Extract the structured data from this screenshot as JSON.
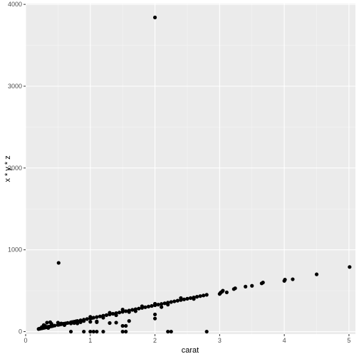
{
  "chart_data": {
    "type": "scatter",
    "xlabel": "carat",
    "ylabel": "x * y * z",
    "xlim": [
      0,
      5.1
    ],
    "ylim": [
      -30,
      4010
    ],
    "x_ticks": [
      0,
      1,
      2,
      3,
      4,
      5
    ],
    "y_ticks": [
      0,
      1000,
      2000,
      3000,
      4000
    ],
    "x_tick_labels": [
      "0",
      "1",
      "2",
      "3",
      "4",
      "5"
    ],
    "y_tick_labels": [
      "0",
      "1000",
      "2000",
      "3000",
      "4000"
    ],
    "grid": true,
    "legend": "none",
    "colors": {
      "panel": "#ebebeb",
      "grid_major": "#ffffff",
      "grid_minor": "#f5f5f5",
      "point": "#000000"
    },
    "points": [
      [
        0.2,
        32
      ],
      [
        0.21,
        35
      ],
      [
        0.22,
        36
      ],
      [
        0.23,
        38
      ],
      [
        0.24,
        40
      ],
      [
        0.25,
        42
      ],
      [
        0.26,
        43
      ],
      [
        0.27,
        45
      ],
      [
        0.28,
        46
      ],
      [
        0.29,
        48
      ],
      [
        0.3,
        50
      ],
      [
        0.31,
        52
      ],
      [
        0.32,
        53
      ],
      [
        0.33,
        55
      ],
      [
        0.34,
        57
      ],
      [
        0.35,
        59
      ],
      [
        0.36,
        60
      ],
      [
        0.38,
        63
      ],
      [
        0.4,
        66
      ],
      [
        0.42,
        69
      ],
      [
        0.45,
        74
      ],
      [
        0.5,
        82
      ],
      [
        0.52,
        85
      ],
      [
        0.55,
        90
      ],
      [
        0.58,
        95
      ],
      [
        0.6,
        98
      ],
      [
        0.62,
        101
      ],
      [
        0.65,
        106
      ],
      [
        0.7,
        114
      ],
      [
        0.72,
        117
      ],
      [
        0.75,
        122
      ],
      [
        0.78,
        127
      ],
      [
        0.8,
        130
      ],
      [
        0.85,
        138
      ],
      [
        0.9,
        146
      ],
      [
        0.95,
        154
      ],
      [
        1.0,
        162
      ],
      [
        1.02,
        165
      ],
      [
        1.05,
        170
      ],
      [
        1.1,
        178
      ],
      [
        1.15,
        186
      ],
      [
        1.2,
        194
      ],
      [
        1.25,
        202
      ],
      [
        1.3,
        210
      ],
      [
        1.35,
        218
      ],
      [
        1.4,
        226
      ],
      [
        1.45,
        234
      ],
      [
        1.5,
        242
      ],
      [
        1.55,
        250
      ],
      [
        1.6,
        258
      ],
      [
        1.65,
        266
      ],
      [
        1.7,
        274
      ],
      [
        1.75,
        282
      ],
      [
        1.8,
        290
      ],
      [
        1.85,
        298
      ],
      [
        1.9,
        306
      ],
      [
        1.95,
        314
      ],
      [
        2.0,
        322
      ],
      [
        2.05,
        330
      ],
      [
        2.1,
        338
      ],
      [
        2.15,
        346
      ],
      [
        2.2,
        354
      ],
      [
        2.25,
        362
      ],
      [
        2.3,
        370
      ],
      [
        2.35,
        378
      ],
      [
        2.4,
        386
      ],
      [
        2.45,
        394
      ],
      [
        2.5,
        402
      ],
      [
        2.55,
        410
      ],
      [
        2.6,
        418
      ],
      [
        2.65,
        426
      ],
      [
        2.7,
        434
      ],
      [
        2.75,
        442
      ],
      [
        2.8,
        450
      ],
      [
        0.25,
        55
      ],
      [
        0.3,
        70
      ],
      [
        0.35,
        45
      ],
      [
        0.4,
        95
      ],
      [
        0.5,
        110
      ],
      [
        0.6,
        80
      ],
      [
        0.7,
        100
      ],
      [
        0.9,
        130
      ],
      [
        1.0,
        180
      ],
      [
        1.2,
        170
      ],
      [
        1.3,
        230
      ],
      [
        1.5,
        270
      ],
      [
        1.6,
        240
      ],
      [
        1.8,
        310
      ],
      [
        2.0,
        340
      ],
      [
        2.2,
        330
      ],
      [
        2.4,
        410
      ],
      [
        2.6,
        400
      ],
      [
        0.28,
        80
      ],
      [
        0.33,
        110
      ],
      [
        0.38,
        115
      ],
      [
        0.55,
        100
      ],
      [
        0.75,
        105
      ],
      [
        0.85,
        115
      ],
      [
        1.1,
        125
      ],
      [
        1.4,
        200
      ],
      [
        1.7,
        250
      ],
      [
        2.1,
        300
      ],
      [
        0.7,
        0
      ],
      [
        0.9,
        0
      ],
      [
        1.0,
        0
      ],
      [
        1.05,
        0
      ],
      [
        1.1,
        0
      ],
      [
        1.2,
        0
      ],
      [
        1.5,
        0
      ],
      [
        1.55,
        0
      ],
      [
        2.2,
        0
      ],
      [
        2.25,
        0
      ],
      [
        2.8,
        0
      ],
      [
        0.8,
        100
      ],
      [
        1.0,
        120
      ],
      [
        1.1,
        115
      ],
      [
        1.3,
        105
      ],
      [
        1.4,
        110
      ],
      [
        1.5,
        70
      ],
      [
        1.6,
        130
      ],
      [
        1.55,
        70
      ],
      [
        2.0,
        210
      ],
      [
        2.0,
        160
      ],
      [
        3.0,
        460
      ],
      [
        3.02,
        480
      ],
      [
        3.04,
        490
      ],
      [
        3.01,
        470
      ],
      [
        3.05,
        500
      ],
      [
        3.11,
        480
      ],
      [
        3.22,
        520
      ],
      [
        3.24,
        530
      ],
      [
        3.4,
        550
      ],
      [
        3.5,
        560
      ],
      [
        3.65,
        590
      ],
      [
        3.67,
        600
      ],
      [
        4.0,
        620
      ],
      [
        4.01,
        635
      ],
      [
        4.13,
        640
      ],
      [
        4.5,
        700
      ],
      [
        5.01,
        790
      ],
      [
        0.51,
        840
      ],
      [
        2.0,
        3840
      ]
    ]
  }
}
